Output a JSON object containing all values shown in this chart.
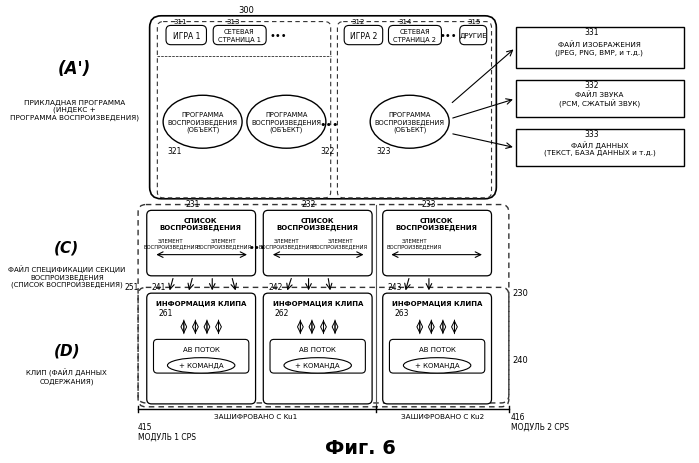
{
  "title": "Фиг. 6",
  "bg_color": "#ffffff",
  "label_A": "(A')",
  "label_A_sub": "ПРИКЛАДНАЯ ПРОГРАММА\n(ИНДЕКС +\nПРОГРАММА ВОСПРОИЗВЕДЕНИЯ)",
  "label_C": "(C)",
  "label_C_sub": "ФАЙЛ СПЕЦИФИКАЦИИ СЕКЦИИ\nВОСПРОИЗВЕДЕНИЯ\n(СПИСОК ВОСПРОИЗВЕДЕНИЯ)",
  "label_D": "(D)",
  "label_D_sub": "КЛИП (ФАЙЛ ДАННЫХ\nСОДЕРЖАНИЯ)",
  "n300": "300",
  "n311": "311",
  "n313": "313",
  "n312": "312",
  "n314": "314",
  "n315": "315",
  "n321": "321",
  "n322": "322",
  "n323": "323",
  "n331": "331",
  "n332": "332",
  "n333": "333",
  "n231": "231",
  "n232": "232",
  "n233": "233",
  "n241": "241",
  "n242": "242",
  "n243": "243",
  "n251": "251",
  "n261": "261",
  "n262": "262",
  "n263": "263",
  "n230": "230",
  "n240": "240",
  "n415": "415",
  "n416": "416",
  "t311": "ИГРА 1",
  "t313": "СЕТЕВАЯ\nСТРАНИЦА 1",
  "t312": "ИГРА 2",
  "t314": "СЕТЕВАЯ\nСТРАНИЦА 2",
  "t315": "ДРУГИЕ",
  "t321": "ПРОГРАММА\nВОСПРОИЗВЕДЕНИЯ\n(ОБЪЕКТ)",
  "t322": "ПРОГРАММА\nВОСПРОИЗВЕДЕНИЯ\n(ОБЪЕКТ)",
  "t323": "ПРОГРАММА\nВОСПРОИЗВЕДЕНИЯ\n(ОБЪЕКТ)",
  "t331": "ФАЙЛ ИЗОБРАЖЕНИЯ\n(JPEG, PNG, BMP, и т.д.)",
  "t332": "ФАЙЛ ЗВУКА\n(PCM, СЖАТЫЙ ЗВУК)",
  "t333": "ФАЙЛ ДАННЫХ\n(ТЕКСТ, БАЗА ДАННЫХ и т.д.)",
  "t_playlist": "СПИСОК\nВОСПРОИЗВЕДЕНИЯ",
  "t_elem1": "ЭЛЕМЕНТ\nВОСПРОИЗВЕДЕНИЯ",
  "t_elem2": "ЭЛЕМЕНТ\nВОСПРОИЗВЕДЕНИЯ",
  "t_clipinfo": "ИНФОРМАЦИЯ КЛИПА",
  "t_avstream": "АВ ПОТОК",
  "t_command": "+ КОМАНДА",
  "t415": "МОДУЛЬ 1 CPS",
  "t416": "МОДУЛЬ 2 CPS",
  "t_enc1": "ЗАШИФРОВАНО С Ku1",
  "t_enc2": "ЗАШИФРОВАНО С Ku2"
}
